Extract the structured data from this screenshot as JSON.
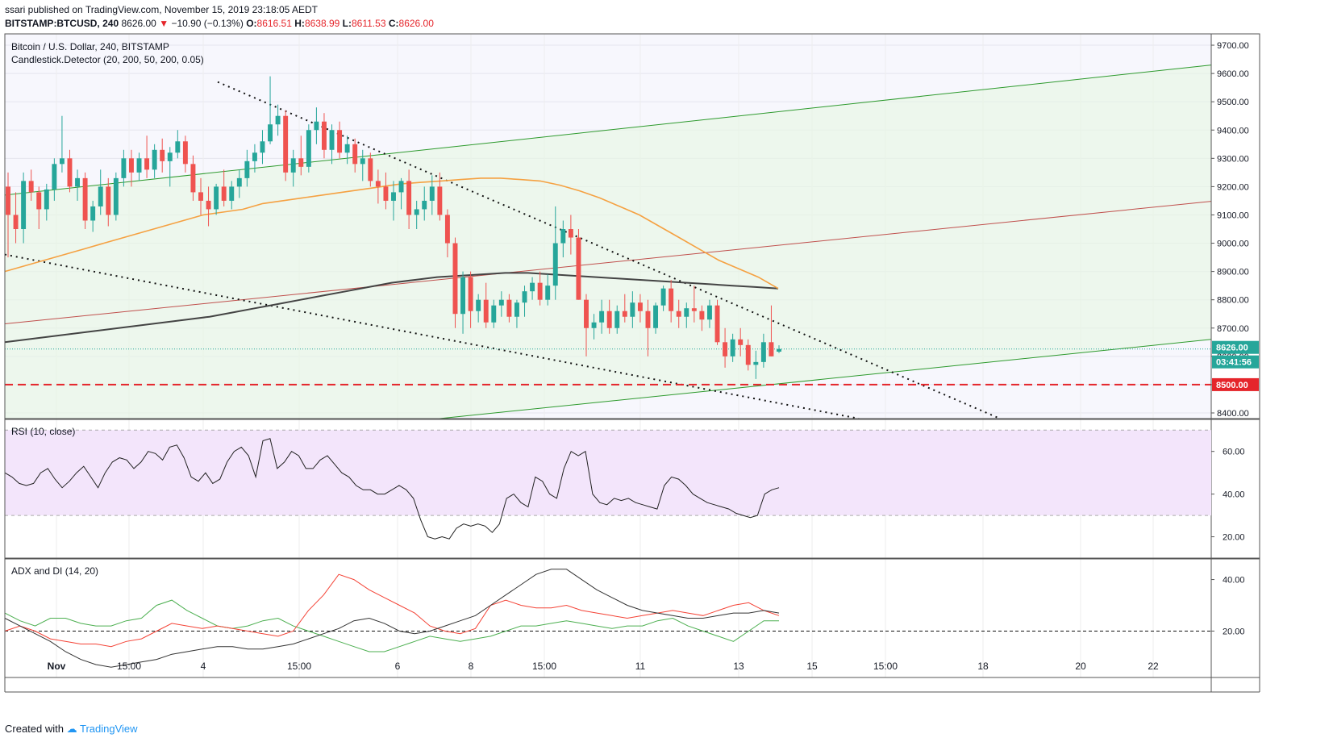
{
  "header": {
    "publish_line": "ssari published on TradingView.com, November 15, 2019 23:18:05 AEDT",
    "symbol": "BITSTAMP:BTCUSD, 240",
    "last": "8626.00",
    "change": "−10.90 (−0.13%)",
    "open_label": "O:",
    "open": "8616.51",
    "high_label": "H:",
    "high": "8638.99",
    "low_label": "L:",
    "low": "8611.53",
    "close_label": "C:",
    "close": "8626.00"
  },
  "main_pane": {
    "title": "Bitcoin / U.S. Dollar, 240, BITSTAMP",
    "indicator": "Candlestick.Detector (20, 200, 50, 200, 0.05)",
    "price_ticks": [
      "9700.00",
      "9600.00",
      "9500.00",
      "9400.00",
      "9300.00",
      "9200.00",
      "9100.00",
      "9000.00",
      "8900.00",
      "8800.00",
      "8700.00",
      "8600.00",
      "8500.00",
      "8400.00"
    ],
    "last_price_tag": "8626.00",
    "countdown_tag": "03:41:56",
    "level_tag": "8500.00"
  },
  "rsi_pane": {
    "title": "RSI (10, close)",
    "ticks": [
      "60.00",
      "40.00",
      "20.00"
    ]
  },
  "adx_pane": {
    "title": "ADX and DI (14, 20)",
    "ticks": [
      "40.00",
      "20.00"
    ]
  },
  "x_axis": {
    "ticks": [
      "Nov",
      "15:00",
      "4",
      "15:00",
      "6",
      "8",
      "15:00",
      "11",
      "13",
      "15",
      "15:00",
      "18",
      "20",
      "22",
      "15:00"
    ]
  },
  "footer": {
    "created_with": "Created with",
    "brand": "TradingView"
  },
  "colors": {
    "bull": "#26a69a",
    "bear": "#ef5350",
    "green_line": "#2e9a2e",
    "red_line": "#c0504d",
    "ema": "#f5a142",
    "sma": "#444444",
    "level": "#e5252b",
    "rsi_band": "#f3e5fb"
  },
  "chart_data": {
    "type": "candlestick",
    "symbol": "BITSTAMP:BTCUSD",
    "timeframe": "240",
    "y_range": [
      8380,
      9740
    ],
    "candles": [
      [
        9200,
        9250,
        8950,
        9100
      ],
      [
        9100,
        9180,
        9000,
        9050
      ],
      [
        9050,
        9250,
        9000,
        9220
      ],
      [
        9220,
        9260,
        9150,
        9180
      ],
      [
        9180,
        9200,
        9050,
        9120
      ],
      [
        9120,
        9210,
        9080,
        9190
      ],
      [
        9190,
        9300,
        9150,
        9280
      ],
      [
        9280,
        9450,
        9250,
        9300
      ],
      [
        9300,
        9330,
        9180,
        9200
      ],
      [
        9200,
        9260,
        9150,
        9230
      ],
      [
        9230,
        9250,
        9050,
        9080
      ],
      [
        9080,
        9150,
        9040,
        9130
      ],
      [
        9130,
        9260,
        9100,
        9200
      ],
      [
        9200,
        9230,
        9060,
        9100
      ],
      [
        9100,
        9250,
        9080,
        9230
      ],
      [
        9230,
        9330,
        9200,
        9300
      ],
      [
        9300,
        9330,
        9200,
        9250
      ],
      [
        9250,
        9320,
        9220,
        9300
      ],
      [
        9300,
        9380,
        9230,
        9260
      ],
      [
        9260,
        9350,
        9230,
        9330
      ],
      [
        9330,
        9370,
        9250,
        9290
      ],
      [
        9290,
        9340,
        9200,
        9320
      ],
      [
        9320,
        9400,
        9300,
        9360
      ],
      [
        9360,
        9380,
        9250,
        9280
      ],
      [
        9280,
        9310,
        9150,
        9180
      ],
      [
        9180,
        9230,
        9100,
        9150
      ],
      [
        9150,
        9200,
        9060,
        9120
      ],
      [
        9120,
        9210,
        9100,
        9200
      ],
      [
        9200,
        9260,
        9130,
        9150
      ],
      [
        9150,
        9220,
        9120,
        9200
      ],
      [
        9200,
        9260,
        9160,
        9230
      ],
      [
        9230,
        9330,
        9200,
        9290
      ],
      [
        9290,
        9350,
        9250,
        9320
      ],
      [
        9320,
        9400,
        9280,
        9360
      ],
      [
        9360,
        9590,
        9350,
        9420
      ],
      [
        9420,
        9490,
        9380,
        9450
      ],
      [
        9450,
        9470,
        9220,
        9250
      ],
      [
        9250,
        9330,
        9200,
        9300
      ],
      [
        9300,
        9380,
        9240,
        9270
      ],
      [
        9270,
        9420,
        9250,
        9400
      ],
      [
        9400,
        9480,
        9350,
        9430
      ],
      [
        9430,
        9460,
        9300,
        9330
      ],
      [
        9330,
        9420,
        9280,
        9400
      ],
      [
        9400,
        9430,
        9300,
        9320
      ],
      [
        9320,
        9380,
        9280,
        9350
      ],
      [
        9350,
        9370,
        9250,
        9280
      ],
      [
        9280,
        9330,
        9220,
        9300
      ],
      [
        9300,
        9320,
        9200,
        9220
      ],
      [
        9220,
        9260,
        9140,
        9200
      ],
      [
        9200,
        9250,
        9120,
        9150
      ],
      [
        9150,
        9220,
        9080,
        9180
      ],
      [
        9180,
        9230,
        9120,
        9220
      ],
      [
        9220,
        9260,
        9050,
        9100
      ],
      [
        9100,
        9150,
        9050,
        9120
      ],
      [
        9120,
        9200,
        9080,
        9150
      ],
      [
        9150,
        9240,
        9100,
        9200
      ],
      [
        9200,
        9250,
        9080,
        9100
      ],
      [
        9100,
        9120,
        8950,
        9000
      ],
      [
        9000,
        9020,
        8700,
        8750
      ],
      [
        8750,
        8900,
        8680,
        8880
      ],
      [
        8880,
        8900,
        8700,
        8760
      ],
      [
        8760,
        8820,
        8720,
        8800
      ],
      [
        8800,
        8860,
        8700,
        8720
      ],
      [
        8720,
        8800,
        8700,
        8780
      ],
      [
        8780,
        8830,
        8740,
        8800
      ],
      [
        8800,
        8820,
        8720,
        8740
      ],
      [
        8740,
        8800,
        8700,
        8790
      ],
      [
        8790,
        8850,
        8740,
        8830
      ],
      [
        8830,
        8880,
        8800,
        8860
      ],
      [
        8860,
        8900,
        8780,
        8800
      ],
      [
        8800,
        8890,
        8780,
        8850
      ],
      [
        8850,
        9130,
        8800,
        9000
      ],
      [
        9000,
        9080,
        8950,
        9050
      ],
      [
        9050,
        9100,
        8960,
        9020
      ],
      [
        9020,
        9050,
        8800,
        8800
      ],
      [
        8800,
        8820,
        8600,
        8700
      ],
      [
        8700,
        8750,
        8660,
        8720
      ],
      [
        8720,
        8800,
        8680,
        8760
      ],
      [
        8760,
        8800,
        8680,
        8700
      ],
      [
        8700,
        8780,
        8680,
        8760
      ],
      [
        8760,
        8820,
        8720,
        8740
      ],
      [
        8740,
        8830,
        8700,
        8790
      ],
      [
        8790,
        8820,
        8720,
        8760
      ],
      [
        8760,
        8800,
        8600,
        8700
      ],
      [
        8700,
        8790,
        8680,
        8780
      ],
      [
        8780,
        8850,
        8760,
        8840
      ],
      [
        8840,
        8870,
        8720,
        8760
      ],
      [
        8760,
        8800,
        8700,
        8740
      ],
      [
        8740,
        8790,
        8700,
        8770
      ],
      [
        8770,
        8850,
        8720,
        8760
      ],
      [
        8760,
        8780,
        8690,
        8730
      ],
      [
        8730,
        8800,
        8700,
        8780
      ],
      [
        8780,
        8800,
        8640,
        8650
      ],
      [
        8650,
        8700,
        8560,
        8600
      ],
      [
        8600,
        8680,
        8580,
        8660
      ],
      [
        8660,
        8700,
        8600,
        8640
      ],
      [
        8640,
        8660,
        8550,
        8570
      ],
      [
        8570,
        8620,
        8520,
        8580
      ],
      [
        8580,
        8680,
        8560,
        8650
      ],
      [
        8650,
        8780,
        8600,
        8600
      ],
      [
        8616.51,
        8638.99,
        8611.53,
        8626
      ]
    ],
    "ema50": [
      8900,
      8920,
      8940,
      8960,
      8980,
      9000,
      9020,
      9040,
      9060,
      9080,
      9100,
      9110,
      9120,
      9140,
      9150,
      9160,
      9170,
      9180,
      9190,
      9200,
      9210,
      9215,
      9220,
      9225,
      9230,
      9230,
      9225,
      9220,
      9205,
      9185,
      9160,
      9130,
      9100,
      9060,
      9020,
      8980,
      8940,
      8910,
      8880,
      8840
    ],
    "sma200": [
      8650,
      8660,
      8670,
      8680,
      8690,
      8700,
      8710,
      8720,
      8730,
      8740,
      8755,
      8770,
      8785,
      8800,
      8815,
      8830,
      8845,
      8860,
      8870,
      8880,
      8885,
      8890,
      8895,
      8895,
      8890,
      8885,
      8880,
      8875,
      8870,
      8865,
      8860,
      8855,
      8850,
      8845,
      8840
    ],
    "levels": [
      {
        "price": 8500,
        "label": "8500.00"
      }
    ],
    "rsi": [
      50,
      48,
      45,
      44,
      45,
      50,
      52,
      47,
      43,
      46,
      50,
      53,
      48,
      43,
      50,
      55,
      57,
      56,
      52,
      55,
      60,
      59,
      56,
      62,
      63,
      57,
      48,
      46,
      50,
      45,
      47,
      55,
      60,
      62,
      58,
      48,
      65,
      66,
      52,
      55,
      60,
      58,
      52,
      52,
      56,
      58,
      54,
      50,
      48,
      44,
      42,
      42,
      40,
      40,
      42,
      44,
      42,
      38,
      28,
      20,
      19,
      20,
      19,
      24,
      26,
      25,
      26,
      25,
      22,
      26,
      38,
      40,
      36,
      34,
      48,
      46,
      40,
      38,
      52,
      60,
      58,
      60,
      40,
      36,
      35,
      38,
      37,
      38,
      36,
      35,
      34,
      33,
      44,
      48,
      47,
      44,
      40,
      38,
      36,
      35,
      34,
      33,
      31,
      30,
      29,
      30,
      40,
      42,
      43
    ],
    "adx": [
      25,
      22,
      19,
      16,
      12,
      9,
      7,
      6,
      7,
      8,
      9,
      11,
      12,
      13,
      14,
      14,
      13,
      13,
      14,
      15,
      17,
      19,
      21,
      24,
      25,
      23,
      20,
      19,
      20,
      22,
      24,
      26,
      30,
      34,
      38,
      42,
      44,
      44,
      40,
      36,
      33,
      30,
      28,
      27,
      26,
      25,
      25,
      26,
      27,
      27,
      28,
      27
    ],
    "di_plus": [
      27,
      24,
      22,
      25,
      25,
      23,
      22,
      22,
      24,
      25,
      30,
      32,
      28,
      25,
      22,
      21,
      22,
      24,
      25,
      22,
      20,
      18,
      16,
      14,
      12,
      12,
      14,
      16,
      18,
      17,
      16,
      17,
      18,
      20,
      22,
      22,
      23,
      24,
      23,
      22,
      21,
      22,
      22,
      24,
      25,
      22,
      20,
      18,
      16,
      20,
      24,
      24
    ],
    "di_minus": [
      20,
      22,
      20,
      17,
      16,
      15,
      15,
      14,
      16,
      17,
      20,
      23,
      22,
      21,
      22,
      21,
      20,
      19,
      18,
      20,
      28,
      34,
      42,
      40,
      36,
      33,
      30,
      27,
      22,
      20,
      19,
      21,
      30,
      32,
      30,
      29,
      29,
      30,
      28,
      27,
      26,
      25,
      26,
      27,
      28,
      27,
      26,
      28,
      30,
      31,
      28,
      26
    ],
    "trendlines": [
      "ascending channel (green)",
      "upper green trendline",
      "red median line",
      "dotted descending resistance",
      "dotted descending support"
    ]
  }
}
